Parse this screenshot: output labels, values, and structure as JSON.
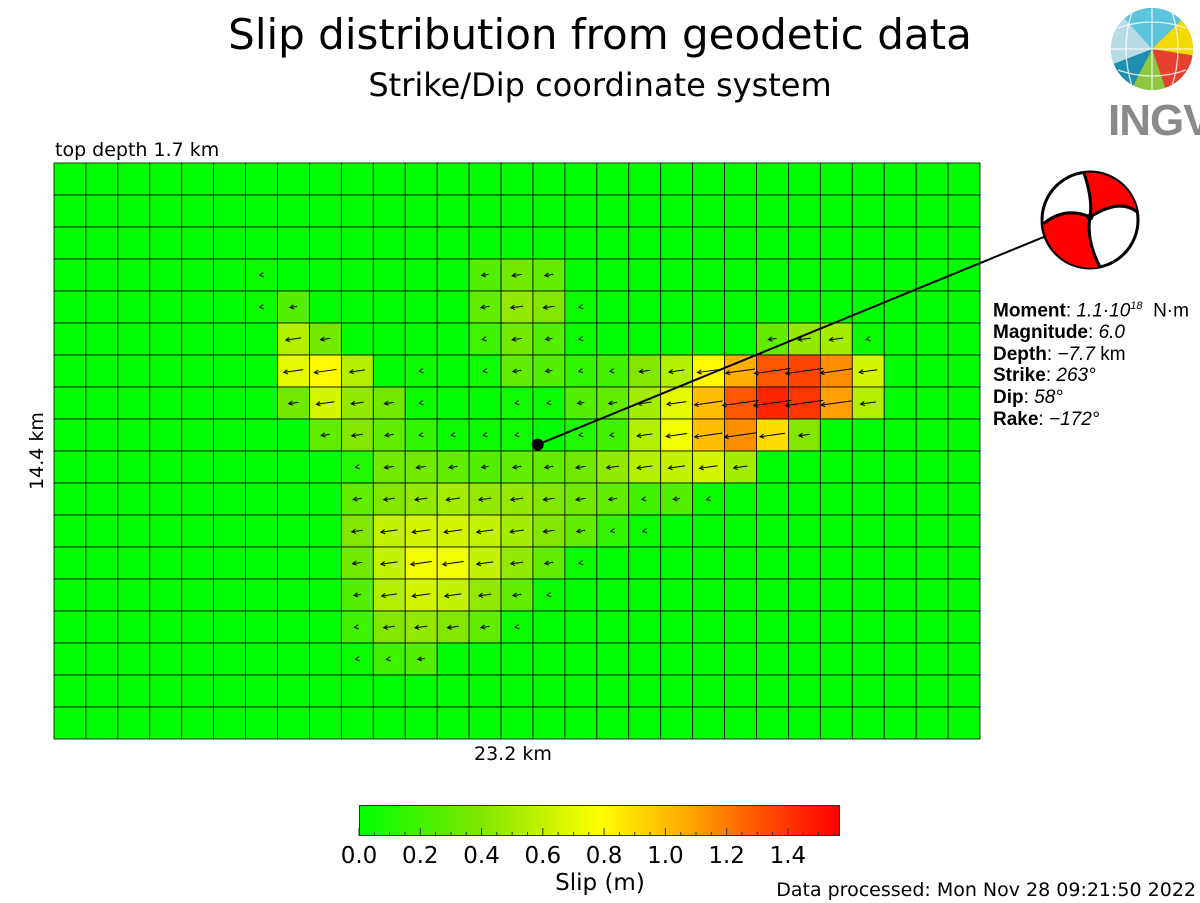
{
  "header": {
    "title": "Slip distribution from geodetic data",
    "subtitle": "Strike/Dip coordinate system"
  },
  "logo": {
    "text": "INGV"
  },
  "fault": {
    "top_depth_label": "top depth 1.7 km",
    "width_label": "23.2 km",
    "height_label": "14.4 km"
  },
  "source_params": {
    "moment_label": "Moment",
    "moment_value": "1.1·10",
    "moment_exp": "18",
    "moment_unit": "N·m",
    "magnitude_label": "Magnitude",
    "magnitude_value": "6.0",
    "depth_label": "Depth",
    "depth_value": "−7.7",
    "depth_unit": "km",
    "strike_label": "Strike",
    "strike_value": "263°",
    "dip_label": "Dip",
    "dip_value": "58°",
    "rake_label": "Rake",
    "rake_value": "−172°"
  },
  "colorbar": {
    "title": "Slip (m)",
    "ticks": [
      "0.0",
      "0.2",
      "0.4",
      "0.6",
      "0.8",
      "1.0",
      "1.2",
      "1.4"
    ],
    "tick_values": [
      0.0,
      0.2,
      0.4,
      0.6,
      0.8,
      1.0,
      1.2,
      1.4
    ],
    "range": [
      0.0,
      1.57
    ],
    "colors": [
      "#00ff00",
      "#80e600",
      "#ffff00",
      "#ffa000",
      "#ff5000",
      "#ff0000"
    ]
  },
  "footer": {
    "processed": "Data processed: Mon Nov 28 09:21:50 2022"
  },
  "chart_data": {
    "type": "heatmap",
    "title": "Slip distribution from geodetic data",
    "subtitle": "Strike/Dip coordinate system",
    "xlabel": "23.2 km",
    "ylabel": "14.4 km",
    "colorbar_label": "Slip (m)",
    "n_cols": 29,
    "n_rows": 18,
    "rake_deg": -172,
    "hypocenter_cell": {
      "col": 15,
      "row": 8.8
    },
    "slip_rows": [
      [
        0,
        0,
        0,
        0,
        0,
        0,
        0,
        0,
        0,
        0,
        0,
        0,
        0,
        0,
        0,
        0,
        0,
        0,
        0,
        0,
        0,
        0,
        0,
        0,
        0,
        0,
        0,
        0,
        0
      ],
      [
        0,
        0,
        0,
        0,
        0,
        0,
        0,
        0,
        0,
        0,
        0,
        0,
        0,
        0,
        0,
        0,
        0,
        0,
        0,
        0,
        0,
        0,
        0,
        0,
        0,
        0,
        0,
        0,
        0
      ],
      [
        0,
        0,
        0,
        0,
        0,
        0,
        0,
        0,
        0,
        0,
        0,
        0,
        0,
        0,
        0,
        0,
        0,
        0,
        0,
        0,
        0,
        0,
        0,
        0,
        0,
        0,
        0,
        0,
        0
      ],
      [
        0,
        0,
        0,
        0,
        0,
        0,
        0.03,
        0,
        0,
        0,
        0,
        0,
        0,
        0.25,
        0.35,
        0.3,
        0,
        0,
        0,
        0,
        0,
        0,
        0,
        0,
        0,
        0,
        0,
        0,
        0
      ],
      [
        0,
        0,
        0,
        0,
        0,
        0,
        0.03,
        0.25,
        0,
        0,
        0,
        0,
        0,
        0.3,
        0.45,
        0.4,
        0.03,
        0,
        0,
        0,
        0,
        0,
        0,
        0,
        0,
        0,
        0,
        0,
        0
      ],
      [
        0,
        0,
        0,
        0,
        0,
        0,
        0,
        0.55,
        0.35,
        0,
        0,
        0,
        0,
        0.2,
        0.35,
        0.25,
        0.03,
        0,
        0,
        0,
        0,
        0,
        0.3,
        0.45,
        0.5,
        0.03,
        0,
        0,
        0
      ],
      [
        0,
        0,
        0,
        0,
        0,
        0,
        0,
        0.7,
        0.8,
        0.55,
        0,
        0.03,
        0,
        0.05,
        0.3,
        0.25,
        0.15,
        0.2,
        0.4,
        0.55,
        0.8,
        1.05,
        1.3,
        1.35,
        1.15,
        0.65,
        0,
        0,
        0
      ],
      [
        0,
        0,
        0,
        0,
        0,
        0,
        0,
        0.35,
        0.65,
        0.45,
        0.35,
        0.03,
        0,
        0,
        0.05,
        0.03,
        0.25,
        0.3,
        0.5,
        0.7,
        1.0,
        1.3,
        1.45,
        1.4,
        1.1,
        0.55,
        0,
        0,
        0
      ],
      [
        0,
        0,
        0,
        0,
        0,
        0,
        0,
        0,
        0.3,
        0.4,
        0.3,
        0.15,
        0.03,
        0.03,
        0.05,
        0,
        0.1,
        0.2,
        0.55,
        0.75,
        1.0,
        1.15,
        0.9,
        0.4,
        0,
        0,
        0,
        0,
        0
      ],
      [
        0,
        0,
        0,
        0,
        0,
        0,
        0,
        0,
        0,
        0.1,
        0.35,
        0.35,
        0.3,
        0.25,
        0.3,
        0.3,
        0.35,
        0.45,
        0.55,
        0.6,
        0.65,
        0.5,
        0,
        0,
        0,
        0,
        0,
        0,
        0
      ],
      [
        0,
        0,
        0,
        0,
        0,
        0,
        0,
        0,
        0,
        0.3,
        0.4,
        0.45,
        0.5,
        0.45,
        0.45,
        0.4,
        0.35,
        0.3,
        0.2,
        0.25,
        0.03,
        0,
        0,
        0,
        0,
        0,
        0,
        0,
        0
      ],
      [
        0,
        0,
        0,
        0,
        0,
        0,
        0,
        0,
        0,
        0.4,
        0.6,
        0.65,
        0.65,
        0.6,
        0.5,
        0.4,
        0.3,
        0.15,
        0.03,
        0,
        0,
        0,
        0,
        0,
        0,
        0,
        0,
        0,
        0
      ],
      [
        0,
        0,
        0,
        0,
        0,
        0,
        0,
        0,
        0,
        0.35,
        0.6,
        0.75,
        0.75,
        0.6,
        0.45,
        0.3,
        0.03,
        0,
        0,
        0,
        0,
        0,
        0,
        0,
        0,
        0,
        0,
        0,
        0
      ],
      [
        0,
        0,
        0,
        0,
        0,
        0,
        0,
        0,
        0,
        0.25,
        0.55,
        0.65,
        0.6,
        0.45,
        0.3,
        0.03,
        0,
        0,
        0,
        0,
        0,
        0,
        0,
        0,
        0,
        0,
        0,
        0,
        0
      ],
      [
        0,
        0,
        0,
        0,
        0,
        0,
        0,
        0,
        0,
        0.2,
        0.4,
        0.45,
        0.4,
        0.3,
        0.03,
        0,
        0,
        0,
        0,
        0,
        0,
        0,
        0,
        0,
        0,
        0,
        0,
        0,
        0
      ],
      [
        0,
        0,
        0,
        0,
        0,
        0,
        0,
        0,
        0,
        0.03,
        0.2,
        0.25,
        0,
        0,
        0,
        0,
        0,
        0,
        0,
        0,
        0,
        0,
        0,
        0,
        0,
        0,
        0,
        0,
        0
      ],
      [
        0,
        0,
        0,
        0,
        0,
        0,
        0,
        0,
        0,
        0,
        0,
        0,
        0,
        0,
        0,
        0,
        0,
        0,
        0,
        0,
        0,
        0,
        0,
        0,
        0,
        0,
        0,
        0,
        0
      ],
      [
        0,
        0,
        0,
        0,
        0,
        0,
        0,
        0,
        0,
        0,
        0,
        0,
        0,
        0,
        0,
        0,
        0,
        0,
        0,
        0,
        0,
        0,
        0,
        0,
        0,
        0,
        0,
        0,
        0
      ]
    ]
  }
}
